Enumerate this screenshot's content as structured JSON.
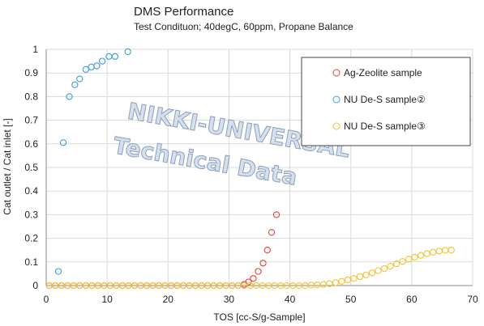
{
  "chart_data": {
    "type": "scatter",
    "title": "DMS Performance",
    "subtitle": "Test Condituon; 40degC, 60ppm, Propane Balance",
    "xlabel": "TOS [cc-S/g-Sample]",
    "ylabel": "Cat outlet / Cat inlet [-]",
    "xlim": [
      0,
      70
    ],
    "ylim": [
      0,
      1
    ],
    "x_ticks": [
      "0",
      "10",
      "20",
      "30",
      "40",
      "50",
      "60",
      "70"
    ],
    "y_ticks": [
      "0",
      "0.1",
      "0.2",
      "0.3",
      "0.4",
      "0.5",
      "0.6",
      "0.7",
      "0.8",
      "0.9",
      "1"
    ],
    "grid": true,
    "legend_position": "top-right",
    "watermark": [
      "NIKKI-UNIVERSAL",
      "Technical Data"
    ],
    "series": [
      {
        "name": "Ag-Zeolite sample",
        "color": "#e8403a",
        "points": [
          [
            0.5,
            0
          ],
          [
            1.5,
            0
          ],
          [
            2.5,
            0
          ],
          [
            3.5,
            0
          ],
          [
            4.5,
            0
          ],
          [
            5.5,
            0
          ],
          [
            6.5,
            0
          ],
          [
            7.5,
            0
          ],
          [
            8.5,
            0
          ],
          [
            9.5,
            0
          ],
          [
            10.5,
            0
          ],
          [
            11.5,
            0
          ],
          [
            12.5,
            0
          ],
          [
            13.5,
            0
          ],
          [
            14.5,
            0
          ],
          [
            15.5,
            0
          ],
          [
            16.5,
            0
          ],
          [
            17.5,
            0
          ],
          [
            18.5,
            0
          ],
          [
            19.5,
            0
          ],
          [
            20.5,
            0
          ],
          [
            21.5,
            0
          ],
          [
            22.5,
            0
          ],
          [
            23.5,
            0
          ],
          [
            24.5,
            0
          ],
          [
            25.5,
            0
          ],
          [
            26.5,
            0
          ],
          [
            27.5,
            0
          ],
          [
            28.5,
            0
          ],
          [
            29.5,
            0
          ],
          [
            30.5,
            0
          ],
          [
            31.5,
            0
          ],
          [
            32.5,
            0.005
          ],
          [
            33.2,
            0.015
          ],
          [
            34,
            0.03
          ],
          [
            34.8,
            0.06
          ],
          [
            35.6,
            0.095
          ],
          [
            36.3,
            0.15
          ],
          [
            37,
            0.225
          ],
          [
            37.8,
            0.3
          ]
        ]
      },
      {
        "name": "NU De-S sample②",
        "color": "#3a9fd6",
        "points": [
          [
            2,
            0.06
          ],
          [
            2.8,
            0.605
          ],
          [
            3.8,
            0.8
          ],
          [
            4.7,
            0.85
          ],
          [
            5.5,
            0.875
          ],
          [
            6.5,
            0.915
          ],
          [
            7.4,
            0.925
          ],
          [
            8.3,
            0.93
          ],
          [
            9.2,
            0.95
          ],
          [
            10.3,
            0.97
          ],
          [
            11.3,
            0.97
          ],
          [
            13.4,
            0.99
          ]
        ]
      },
      {
        "name": "NU De-S sample③",
        "color": "#f2c230",
        "points": [
          [
            0.5,
            0
          ],
          [
            1.5,
            0
          ],
          [
            2.5,
            0
          ],
          [
            3.5,
            0
          ],
          [
            4.5,
            0
          ],
          [
            5.5,
            0
          ],
          [
            6.5,
            0
          ],
          [
            7.5,
            0
          ],
          [
            8.5,
            0
          ],
          [
            9.5,
            0
          ],
          [
            10.5,
            0
          ],
          [
            11.5,
            0
          ],
          [
            12.5,
            0
          ],
          [
            13.5,
            0
          ],
          [
            14.5,
            0
          ],
          [
            15.5,
            0
          ],
          [
            16.5,
            0
          ],
          [
            17.5,
            0
          ],
          [
            18.5,
            0
          ],
          [
            19.5,
            0
          ],
          [
            20.5,
            0
          ],
          [
            21.5,
            0
          ],
          [
            22.5,
            0
          ],
          [
            23.5,
            0
          ],
          [
            24.5,
            0
          ],
          [
            25.5,
            0
          ],
          [
            26.5,
            0
          ],
          [
            27.5,
            0
          ],
          [
            28.5,
            0
          ],
          [
            29.5,
            0
          ],
          [
            30.5,
            0
          ],
          [
            31.5,
            0
          ],
          [
            32.5,
            0
          ],
          [
            33.5,
            0
          ],
          [
            34.5,
            0
          ],
          [
            35.5,
            0
          ],
          [
            36.5,
            0
          ],
          [
            37.5,
            0
          ],
          [
            38.5,
            0
          ],
          [
            39.5,
            0
          ],
          [
            40.5,
            0
          ],
          [
            41.5,
            0
          ],
          [
            42.5,
            0
          ],
          [
            43.5,
            0.002
          ],
          [
            44.5,
            0.003
          ],
          [
            45.5,
            0.005
          ],
          [
            46.5,
            0.008
          ],
          [
            47.5,
            0.012
          ],
          [
            48.5,
            0.018
          ],
          [
            49.5,
            0.024
          ],
          [
            50.5,
            0.03
          ],
          [
            51.5,
            0.038
          ],
          [
            52.5,
            0.045
          ],
          [
            53.5,
            0.054
          ],
          [
            54.5,
            0.063
          ],
          [
            55.5,
            0.072
          ],
          [
            56.5,
            0.082
          ],
          [
            57.5,
            0.092
          ],
          [
            58.5,
            0.102
          ],
          [
            59.5,
            0.112
          ],
          [
            60.5,
            0.12
          ],
          [
            61.5,
            0.128
          ],
          [
            62.5,
            0.135
          ],
          [
            63.5,
            0.141
          ],
          [
            64.5,
            0.146
          ],
          [
            65.5,
            0.149
          ],
          [
            66.5,
            0.15
          ]
        ]
      }
    ]
  }
}
